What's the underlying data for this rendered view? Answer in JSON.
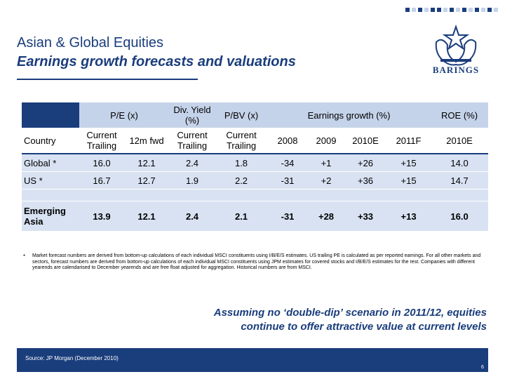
{
  "header": {
    "title": "Asian & Global Equities",
    "subtitle": "Earnings growth forecasts and valuations",
    "logo_text": "BARINGS",
    "brand_color": "#1a3d7c"
  },
  "table": {
    "group_headers": {
      "pe": "P/E (x)",
      "div": "Div. Yield (%)",
      "pbv": "P/BV (x)",
      "eg": "Earnings growth (%)",
      "roe": "ROE (%)"
    },
    "sub_headers": [
      "Country",
      "Current Trailing",
      "12m fwd",
      "Current Trailing",
      "Current Trailing",
      "2008",
      "2009",
      "2010E",
      "2011F",
      "2010E"
    ],
    "rows": [
      [
        "Global *",
        "16.0",
        "12.1",
        "2.4",
        "1.8",
        "-34",
        "+1",
        "+26",
        "+15",
        "14.0"
      ],
      [
        "US *",
        "16.7",
        "12.7",
        "1.9",
        "2.2",
        "-31",
        "+2",
        "+36",
        "+15",
        "14.7"
      ],
      [
        "Emerging Asia",
        "13.9",
        "12.1",
        "2.4",
        "2.1",
        "-31",
        "+28",
        "+33",
        "+13",
        "16.0"
      ]
    ]
  },
  "footnote": {
    "mark": "*",
    "text": "Market forecast numbers are derived from bottom-up calculations of each individual MSCI constituents using I/B/E/S estimates. US trailing PE is calculated as per reported earnings. For all other markets and sectors, forecast numbers are derived from bottom-up calculations of each individual MSCI constituents using JPM estimates for covered stocks and I/B/E/S estimates for the rest. Companies with different yearends are calendarised to December yearends and are free float adjusted for aggregation. Historical numbers are from MSCI."
  },
  "callout": {
    "line1": "Assuming no ‘double-dip’ scenario in 2011/12, equities",
    "line2": "continue to offer attractive value at current levels"
  },
  "footer": {
    "source": "Source: JP Morgan (December 2010)",
    "page": "6"
  }
}
